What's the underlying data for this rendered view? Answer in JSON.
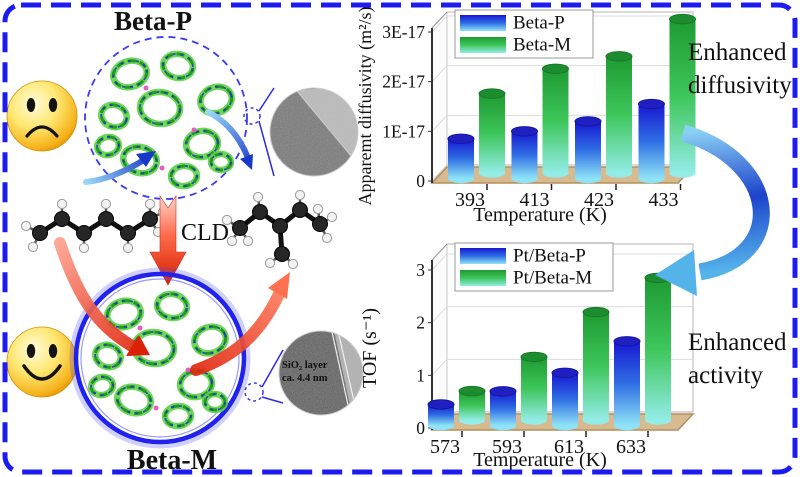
{
  "figure": {
    "palette": {
      "border": "#1c1cf0",
      "floor": "#d8ba90",
      "zeolite_green": "#2fae2f",
      "zeolite_blue": "#2d2dd0",
      "arrow_red": "#dd2008",
      "arrow_blue": "#2a62d8",
      "smiley_yellow": "#ffd84d"
    },
    "left": {
      "beta_p_label": "Beta-P",
      "beta_m_label": "Beta-M",
      "cld_label": "CLD",
      "tem_caption_line1": "SiO₂ layer",
      "tem_caption_line2": "ca. 4.4 nm"
    },
    "right": {
      "enhanced_diffusivity": "Enhanced diffusivity",
      "enhanced_activity": "Enhanced activity"
    }
  },
  "chart_data": [
    {
      "type": "bar",
      "title": "",
      "categories": [
        "393",
        "413",
        "423",
        "433"
      ],
      "xlabel": "Temperature (K)",
      "ylabel": "Apparemt diffusivity (m²/s)",
      "ylim": [
        0,
        3e-17
      ],
      "yticks": [
        0,
        1e-17,
        2e-17,
        3e-17
      ],
      "ytick_labels": [
        "0",
        "1E-17",
        "2E-17",
        "3E-17"
      ],
      "grid": true,
      "legend_position": "top-left",
      "series": [
        {
          "name": "Beta-P",
          "values": [
            8e-18,
            9.5e-18,
            1.15e-17,
            1.5e-17
          ],
          "color": {
            "top": "#1717d2",
            "mid": "#2f6ee4",
            "bottom": "#8fe3f6",
            "cap": "#2020c0",
            "capEdge": "#1515a8"
          }
        },
        {
          "name": "Beta-M",
          "values": [
            1.6e-17,
            2.1e-17,
            2.35e-17,
            3.1e-17
          ],
          "color": {
            "top": "#1e9a32",
            "mid": "#3ec65a",
            "bottom": "#93ece6",
            "cap": "#1c8c2e",
            "capEdge": "#15782a"
          }
        }
      ]
    },
    {
      "type": "bar",
      "title": "",
      "categories": [
        "573",
        "593",
        "613",
        "633"
      ],
      "xlabel": "Temperature (K)",
      "ylabel": "TOF (s⁻¹)",
      "ylim": [
        0,
        3
      ],
      "yticks": [
        0,
        1,
        2,
        3
      ],
      "ytick_labels": [
        "0",
        "1",
        "2",
        "3"
      ],
      "grid": true,
      "legend_position": "top-left",
      "series": [
        {
          "name": "Pt/Beta-P",
          "values": [
            0.4,
            0.65,
            1.0,
            1.6
          ],
          "color": {
            "top": "#1717d2",
            "mid": "#2f6ee4",
            "bottom": "#8fe3f6",
            "cap": "#2020c0",
            "capEdge": "#1515a8"
          }
        },
        {
          "name": "Pt/Beta-M",
          "values": [
            0.55,
            1.2,
            2.05,
            2.7
          ],
          "color": {
            "top": "#1e9a32",
            "mid": "#3ec65a",
            "bottom": "#93ece6",
            "cap": "#1c8c2e",
            "capEdge": "#15782a"
          }
        }
      ]
    }
  ]
}
